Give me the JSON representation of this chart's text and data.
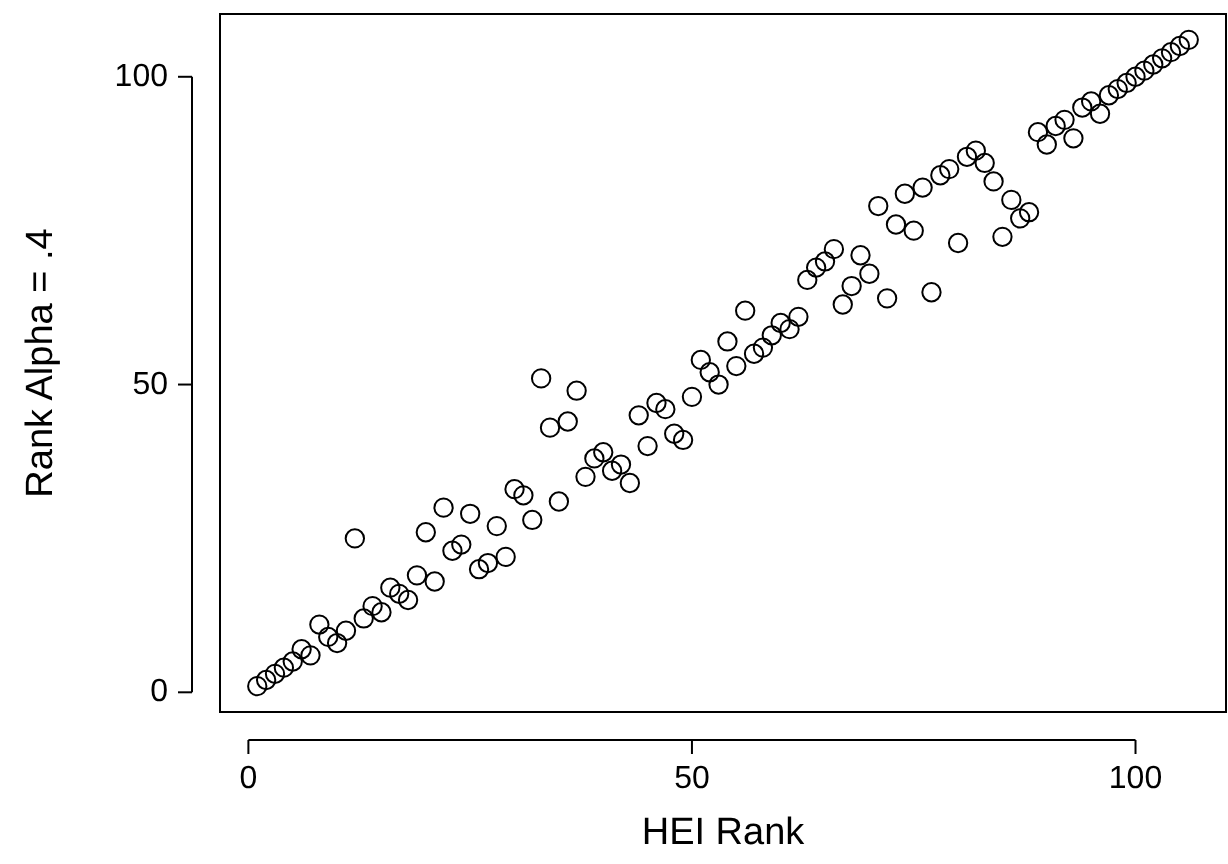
{
  "chart_data": {
    "type": "scatter",
    "xlabel": "HEI Rank",
    "ylabel": "Rank Alpha = .4",
    "xlim": [
      -3.2,
      110.2
    ],
    "ylim": [
      -3.2,
      110.2
    ],
    "xticks": [
      0,
      50,
      100
    ],
    "yticks": [
      0,
      50,
      100
    ],
    "marker": "circle",
    "series": [
      {
        "color": "#000000",
        "x": [
          1,
          2,
          3,
          4,
          5,
          6,
          7,
          8,
          9,
          10,
          11,
          12,
          13,
          14,
          15,
          16,
          17,
          18,
          19,
          20,
          21,
          22,
          23,
          24,
          25,
          26,
          27,
          28,
          29,
          30,
          31,
          32,
          33,
          34,
          35,
          36,
          37,
          38,
          39,
          40,
          41,
          42,
          43,
          44,
          45,
          46,
          47,
          48,
          49,
          50,
          51,
          52,
          53,
          54,
          55,
          56,
          57,
          58,
          59,
          60,
          61,
          62,
          63,
          64,
          65,
          66,
          67,
          68,
          69,
          70,
          71,
          72,
          73,
          74,
          75,
          76,
          77,
          78,
          79,
          80,
          81,
          82,
          83,
          84,
          85,
          86,
          87,
          88,
          89,
          90,
          91,
          92,
          93,
          94,
          95,
          96,
          97,
          98,
          99,
          100,
          101,
          102,
          103,
          104,
          105,
          106
        ],
        "values": [
          1,
          2,
          3,
          4,
          5,
          7,
          6,
          11,
          9,
          8,
          10,
          25,
          12,
          14,
          13,
          17,
          16,
          15,
          19,
          26,
          18,
          30,
          23,
          24,
          29,
          20,
          21,
          27,
          22,
          33,
          32,
          28,
          51,
          43,
          31,
          44,
          49,
          35,
          38,
          39,
          36,
          37,
          34,
          45,
          40,
          47,
          46,
          42,
          41,
          48,
          54,
          52,
          50,
          57,
          53,
          62,
          55,
          56,
          58,
          60,
          59,
          61,
          67,
          69,
          70,
          72,
          63,
          66,
          71,
          68,
          79,
          64,
          76,
          81,
          75,
          82,
          65,
          84,
          85,
          73,
          87,
          88,
          86,
          83,
          74,
          80,
          77,
          78,
          91,
          89,
          92,
          93,
          90,
          95,
          96,
          94,
          97,
          98,
          99,
          100,
          101,
          102,
          103,
          104,
          105,
          106
        ]
      }
    ]
  }
}
